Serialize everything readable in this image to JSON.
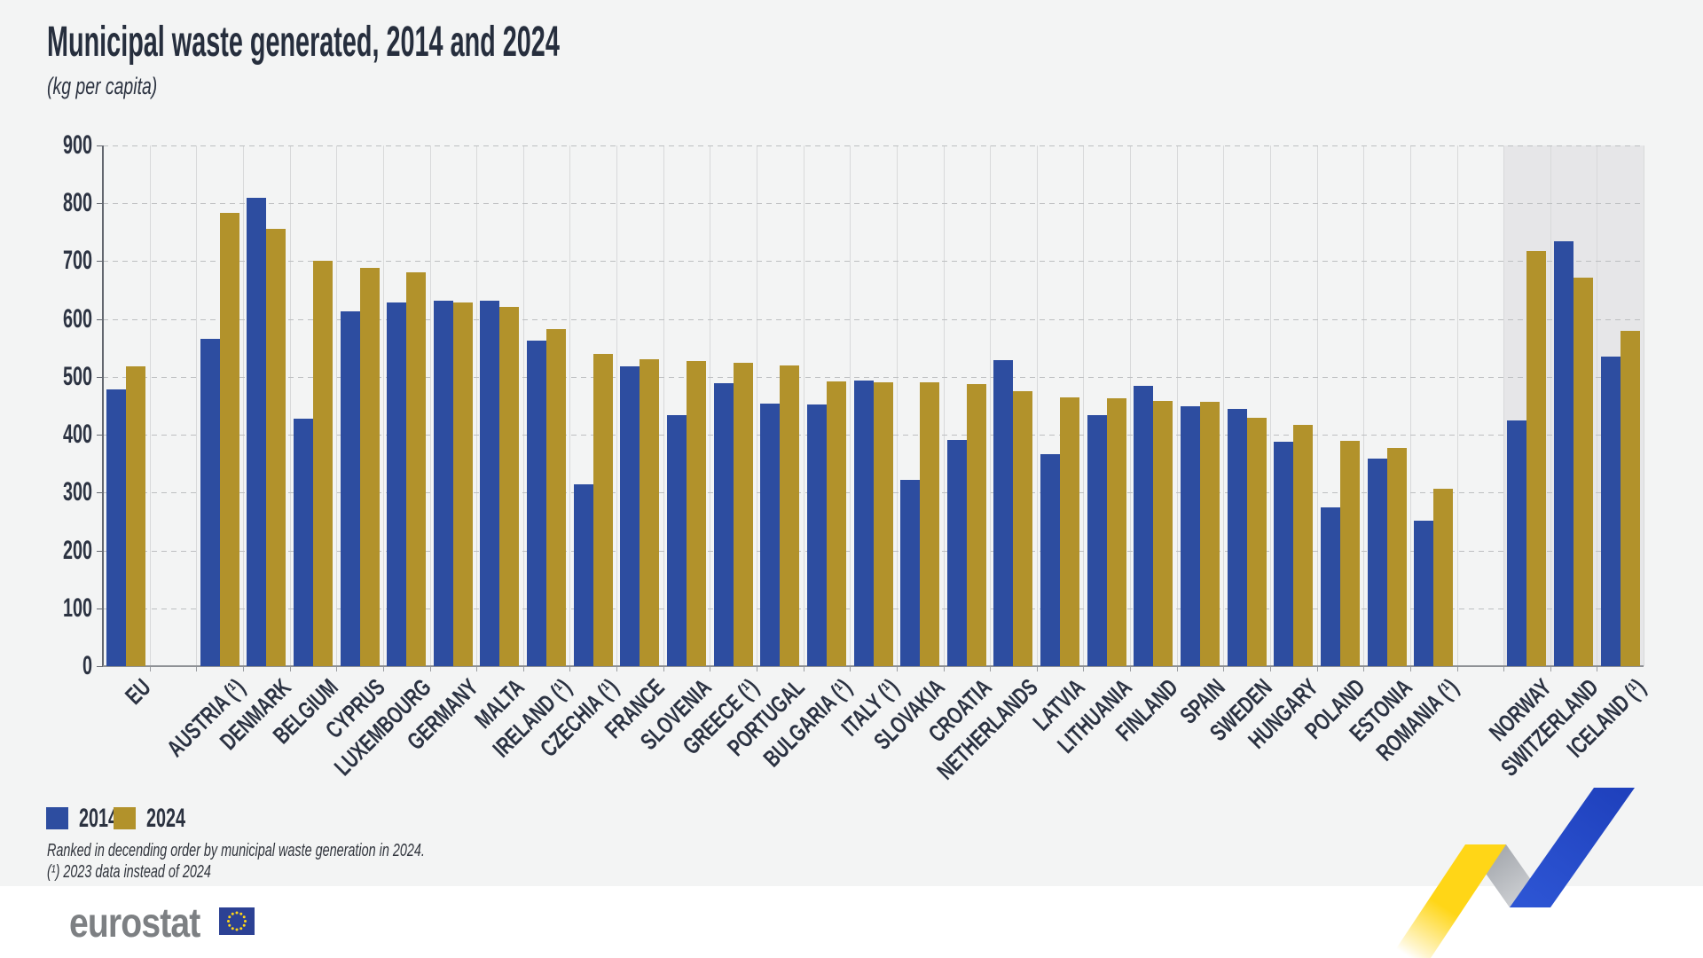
{
  "page": {
    "title": "Municipal waste generated, 2014 and 2024",
    "subtitle": "(kg per capita)",
    "footnote_line1": "Ranked in decending order by municipal waste generation in 2024.",
    "footnote_line2": "(¹) 2023 data instead of 2024",
    "logo_text": "eurostat"
  },
  "colors": {
    "series_2014": "#2d4da0",
    "series_2024": "#b2922b",
    "page_bg": "#f3f4f4",
    "efta_shade": "#e6e6e8",
    "footer_bg": "#ffffff",
    "title_text": "#262e3d",
    "logo_gray": "#7d8083",
    "flag_blue": "#2c4194",
    "star_yellow": "#ffd617"
  },
  "legend": [
    {
      "label": "2014",
      "color": "#2d4da0"
    },
    {
      "label": "2024",
      "color": "#b2922b"
    }
  ],
  "chart_data": {
    "type": "bar",
    "title": "Municipal waste generated, 2014 and 2024",
    "unit": "(kg per capita)",
    "ylabel": "",
    "xlabel": "",
    "ylim": [
      0,
      900
    ],
    "ytick_step": 100,
    "yticks": [
      900,
      800,
      700,
      600,
      500,
      400,
      300,
      200,
      100,
      0
    ],
    "grid": "horizontal-dashed and vertical-solid",
    "legend_position": "bottom-left",
    "series_names": [
      "2014",
      "2024"
    ],
    "groups": [
      {
        "label": "EU",
        "region": "eu_total",
        "bold": true,
        "v2014": 478,
        "v2024": 518
      },
      {
        "label": "AUSTRIA (¹)",
        "region": "eu_member",
        "v2014": 566,
        "v2024": 783
      },
      {
        "label": "DENMARK",
        "region": "eu_member",
        "v2014": 809,
        "v2024": 756
      },
      {
        "label": "BELGIUM",
        "region": "eu_member",
        "v2014": 428,
        "v2024": 701
      },
      {
        "label": "CYPRUS",
        "region": "eu_member",
        "v2014": 614,
        "v2024": 688
      },
      {
        "label": "LUXEMBOURG",
        "region": "eu_member",
        "v2014": 628,
        "v2024": 681
      },
      {
        "label": "GERMANY",
        "region": "eu_member",
        "v2014": 631,
        "v2024": 629
      },
      {
        "label": "MALTA",
        "region": "eu_member",
        "v2014": 631,
        "v2024": 621
      },
      {
        "label": "IRELAND (¹)",
        "region": "eu_member",
        "v2014": 563,
        "v2024": 582
      },
      {
        "label": "CZECHIA (¹)",
        "region": "eu_member",
        "v2014": 314,
        "v2024": 540
      },
      {
        "label": "FRANCE",
        "region": "eu_member",
        "v2014": 519,
        "v2024": 531
      },
      {
        "label": "SLOVENIA",
        "region": "eu_member",
        "v2014": 434,
        "v2024": 528
      },
      {
        "label": "GREECE (¹)",
        "region": "eu_member",
        "v2014": 489,
        "v2024": 525
      },
      {
        "label": "PORTUGAL",
        "region": "eu_member",
        "v2014": 454,
        "v2024": 520
      },
      {
        "label": "BULGARIA (¹)",
        "region": "eu_member",
        "v2014": 452,
        "v2024": 492
      },
      {
        "label": "ITALY (¹)",
        "region": "eu_member",
        "v2014": 494,
        "v2024": 491
      },
      {
        "label": "SLOVAKIA",
        "region": "eu_member",
        "v2014": 322,
        "v2024": 490
      },
      {
        "label": "CROATIA",
        "region": "eu_member",
        "v2014": 391,
        "v2024": 487
      },
      {
        "label": "NETHERLANDS",
        "region": "eu_member",
        "v2014": 529,
        "v2024": 475
      },
      {
        "label": "LATVIA",
        "region": "eu_member",
        "v2014": 366,
        "v2024": 465
      },
      {
        "label": "LITHUANIA",
        "region": "eu_member",
        "v2014": 434,
        "v2024": 463
      },
      {
        "label": "FINLAND",
        "region": "eu_member",
        "v2014": 484,
        "v2024": 459
      },
      {
        "label": "SPAIN",
        "region": "eu_member",
        "v2014": 449,
        "v2024": 457
      },
      {
        "label": "SWEDEN",
        "region": "eu_member",
        "v2014": 445,
        "v2024": 429
      },
      {
        "label": "HUNGARY",
        "region": "eu_member",
        "v2014": 388,
        "v2024": 417
      },
      {
        "label": "POLAND",
        "region": "eu_member",
        "v2014": 275,
        "v2024": 389
      },
      {
        "label": "ESTONIA",
        "region": "eu_member",
        "v2014": 359,
        "v2024": 377
      },
      {
        "label": "ROMANIA (¹)",
        "region": "eu_member",
        "v2014": 252,
        "v2024": 307
      },
      {
        "label": "NORWAY",
        "region": "efta",
        "shaded": true,
        "v2014": 425,
        "v2024": 717
      },
      {
        "label": "SWITZERLAND",
        "region": "efta",
        "shaded": true,
        "v2014": 734,
        "v2024": 672
      },
      {
        "label": "ICELAND (¹)",
        "region": "efta",
        "shaded": true,
        "v2014": 535,
        "v2024": 580
      }
    ]
  }
}
